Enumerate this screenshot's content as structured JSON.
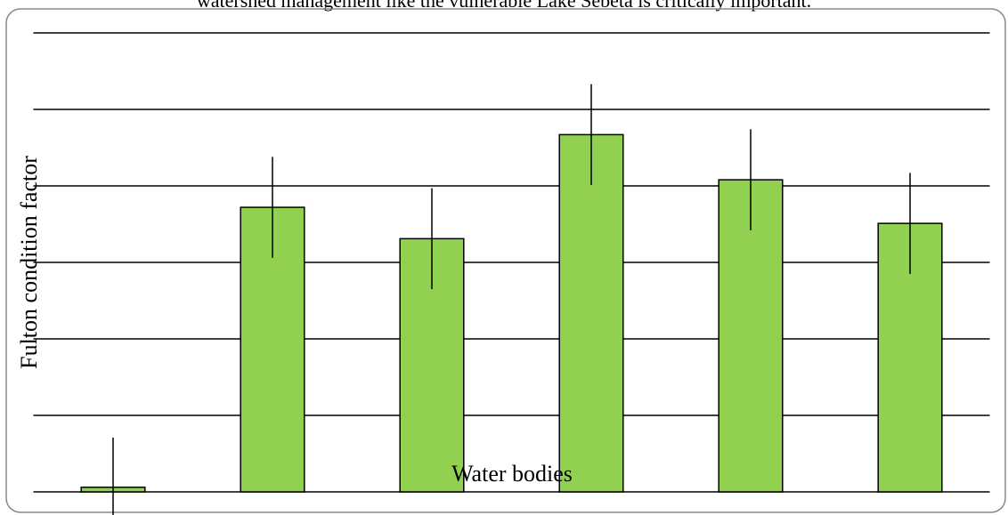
{
  "page_text": "watershed management like the vulnerable Lake Sebeta is critically important.",
  "chart_data": {
    "type": "bar",
    "y_label": "Fulton condition factor",
    "x_label": "Water bodies",
    "categories": [
      null,
      null,
      null,
      null,
      null,
      null
    ],
    "values": [
      0.06,
      3.72,
      3.31,
      4.67,
      4.08,
      3.51
    ],
    "errors": [
      0.65,
      0.66,
      0.66,
      0.66,
      0.66,
      0.66
    ],
    "color": "#92d050",
    "ylim": [
      0,
      6
    ],
    "yticks": [
      0,
      1,
      2,
      3,
      4,
      5,
      6
    ],
    "grid": true
  }
}
